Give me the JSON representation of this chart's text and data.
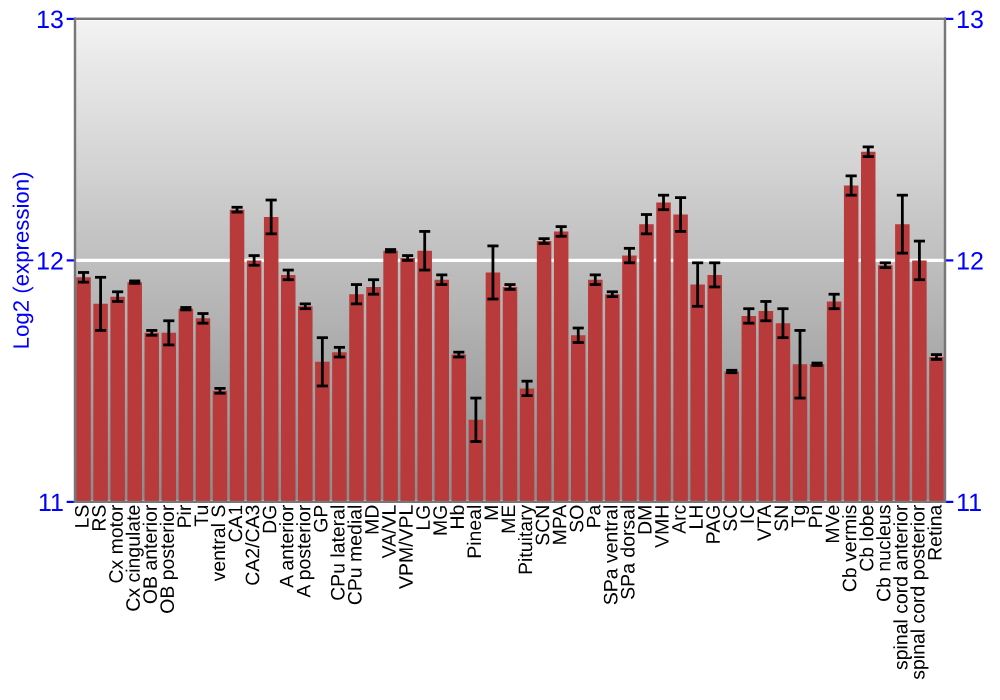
{
  "chart_data": {
    "type": "bar",
    "ylabel": "Log2 (expression)",
    "categories": [
      "LS",
      "RS",
      "Cx motor",
      "Cx cingulate",
      "OB anterior",
      "OB posterior",
      "Pir",
      "Tu",
      "ventral S",
      "CA1",
      "CA2/CA3",
      "DG",
      "A anterior",
      "A posterior",
      "GP",
      "CPu lateral",
      "CPu medial",
      "MD",
      "VA/VL",
      "VPM/VPL",
      "LG",
      "MG",
      "Hb",
      "Pineal",
      "M",
      "ME",
      "Pituitary",
      "SCN",
      "MPA",
      "SO",
      "Pa",
      "SPa ventral",
      "SPa dorsal",
      "DM",
      "VMH",
      "Arc",
      "LH",
      "PAG",
      "SC",
      "IC",
      "VTA",
      "SN",
      "Tg",
      "Pn",
      "MVe",
      "Cb vermis",
      "Cb lobe",
      "Cb nucleus",
      "spinal cord anterior",
      "spinal cord posterior",
      "Retina"
    ],
    "values": [
      11.93,
      11.82,
      11.85,
      11.91,
      11.7,
      11.7,
      11.8,
      11.76,
      11.46,
      12.21,
      12.0,
      12.18,
      11.94,
      11.81,
      11.58,
      11.62,
      11.86,
      11.89,
      12.04,
      12.01,
      12.04,
      11.92,
      11.61,
      11.34,
      11.95,
      11.89,
      11.47,
      12.08,
      12.12,
      11.69,
      11.92,
      11.86,
      12.02,
      12.15,
      12.24,
      12.19,
      11.9,
      11.94,
      11.54,
      11.77,
      11.79,
      11.74,
      11.57,
      11.57,
      11.83,
      12.31,
      12.45,
      11.98,
      12.15,
      12.0,
      11.6
    ],
    "errors": [
      0.02,
      0.11,
      0.02,
      0.005,
      0.01,
      0.05,
      0.005,
      0.02,
      0.01,
      0.01,
      0.02,
      0.07,
      0.02,
      0.01,
      0.1,
      0.02,
      0.04,
      0.03,
      0.005,
      0.01,
      0.08,
      0.02,
      0.01,
      0.09,
      0.11,
      0.01,
      0.03,
      0.01,
      0.02,
      0.03,
      0.02,
      0.01,
      0.03,
      0.04,
      0.03,
      0.07,
      0.09,
      0.05,
      0.005,
      0.03,
      0.04,
      0.06,
      0.14,
      0.005,
      0.03,
      0.04,
      0.02,
      0.01,
      0.12,
      0.08,
      0.01
    ],
    "color": "#b83a3a",
    "ylim": [
      11,
      13
    ],
    "yticks": [
      11,
      12,
      13
    ],
    "y2lim": [
      11,
      13
    ],
    "y2ticks": [
      11,
      12,
      13
    ],
    "grid": "y"
  }
}
